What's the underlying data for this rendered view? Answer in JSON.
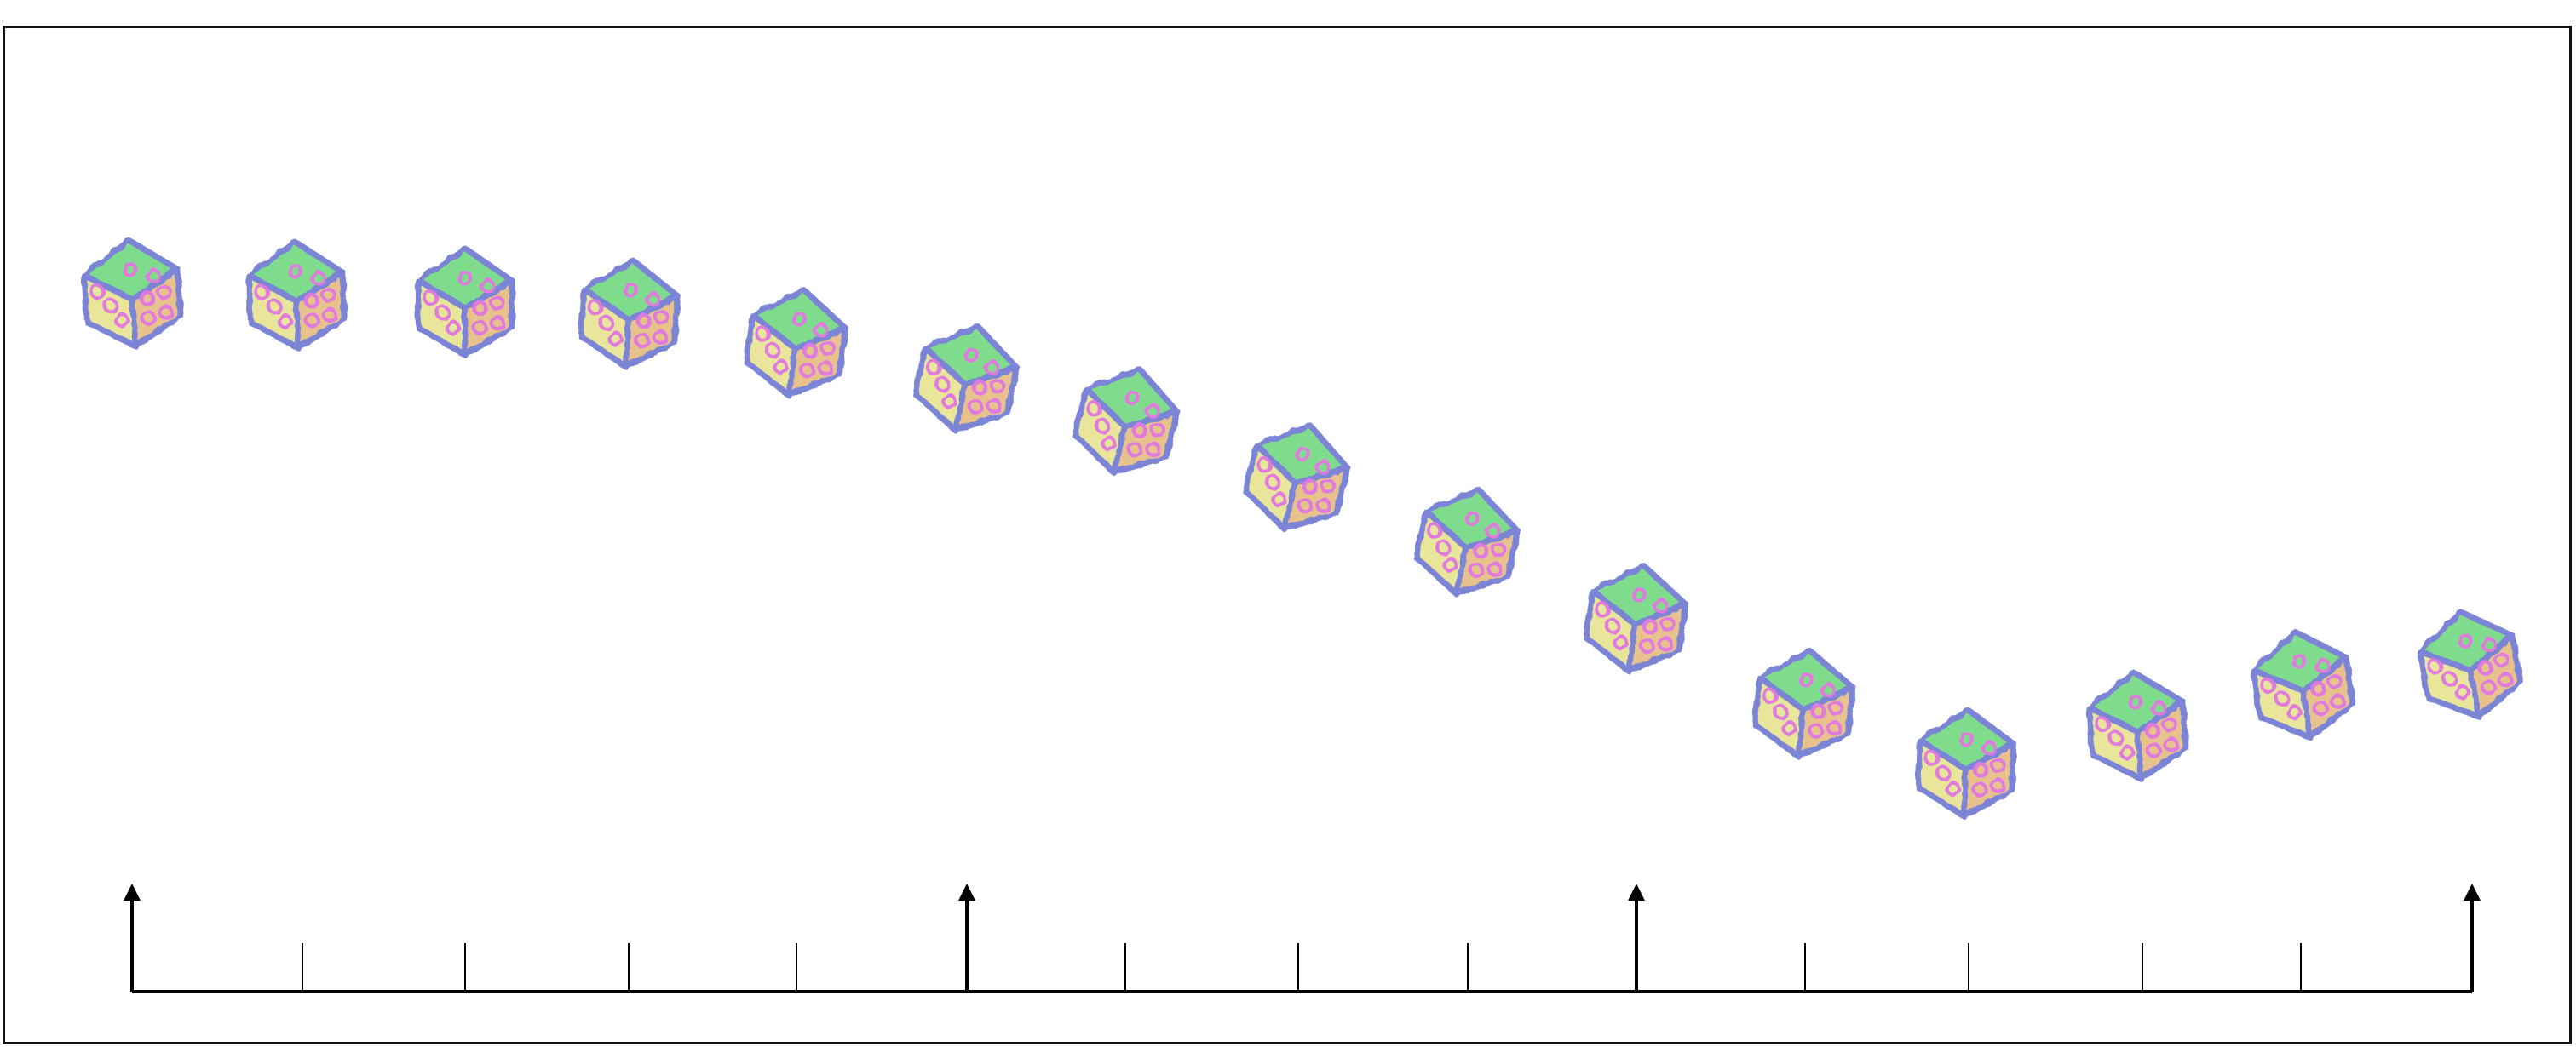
{
  "figure": {
    "description_free": true,
    "frame_color": "#111111",
    "timeline": {
      "segments": 14,
      "keyframes": [
        0,
        5,
        9,
        14
      ],
      "line_color": "#000000"
    },
    "dice": {
      "count": 15,
      "edge_color": "#7b84d6",
      "pip_color": "#e07adf",
      "face_colors": {
        "top": "#7fdc8d",
        "left": "#e9e59a",
        "right": "#e7c28c"
      }
    }
  }
}
